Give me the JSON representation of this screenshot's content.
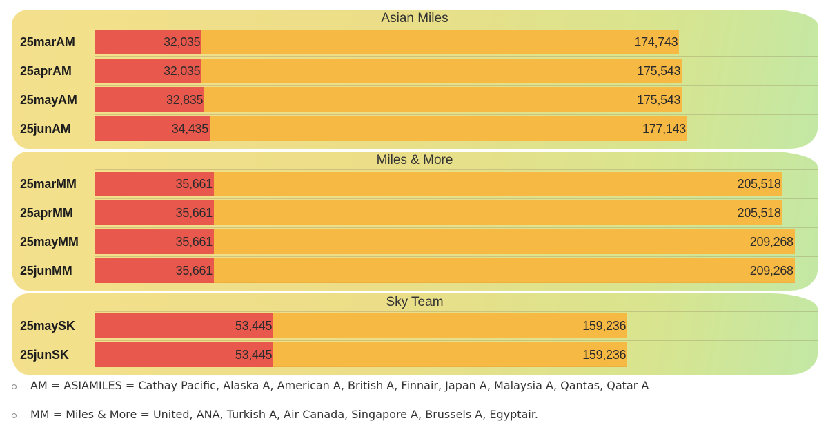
{
  "chart_data": {
    "type": "bar",
    "orientation": "horizontal",
    "groups": [
      {
        "title": "Asian Miles",
        "rows": [
          {
            "category": "25marAM",
            "start": 32035,
            "end": 174743,
            "start_label": "32,035",
            "end_label": "174,743"
          },
          {
            "category": "25aprAM",
            "start": 32035,
            "end": 175543,
            "start_label": "32,035",
            "end_label": "175,543"
          },
          {
            "category": "25mayAM",
            "start": 32835,
            "end": 175543,
            "start_label": "32,835",
            "end_label": "175,543"
          },
          {
            "category": "25junAM",
            "start": 34435,
            "end": 177143,
            "start_label": "34,435",
            "end_label": "177,143"
          }
        ]
      },
      {
        "title": "Miles & More",
        "rows": [
          {
            "category": "25marMM",
            "start": 35661,
            "end": 205518,
            "start_label": "35,661",
            "end_label": "205,518"
          },
          {
            "category": "25aprMM",
            "start": 35661,
            "end": 205518,
            "start_label": "35,661",
            "end_label": "205,518"
          },
          {
            "category": "25mayMM",
            "start": 35661,
            "end": 209268,
            "start_label": "35,661",
            "end_label": "209,268"
          },
          {
            "category": "25junMM",
            "start": 35661,
            "end": 209268,
            "start_label": "35,661",
            "end_label": "209,268"
          }
        ]
      },
      {
        "title": "Sky Team",
        "rows": [
          {
            "category": "25maySK",
            "start": 53445,
            "end": 159236,
            "start_label": "53,445",
            "end_label": "159,236"
          },
          {
            "category": "25junSK",
            "start": 53445,
            "end": 159236,
            "start_label": "53,445",
            "end_label": "159,236"
          }
        ]
      }
    ],
    "xlim": [
      0,
      212000
    ],
    "colors": {
      "start_segment": "#e9584c",
      "end_segment": "#f6b944",
      "panel_gradient": [
        "#f4e08c",
        "#c3e8a5"
      ]
    },
    "grid": true
  },
  "notes": [
    "AM = ASIAMILES = Cathay Pacific, Alaska A, American A, British A, Finnair, Japan A, Malaysia A, Qantas, Qatar A",
    "MM = Miles & More = United, ANA, Turkish A, Air Canada, Singapore A, Brussels A, Egyptair."
  ]
}
